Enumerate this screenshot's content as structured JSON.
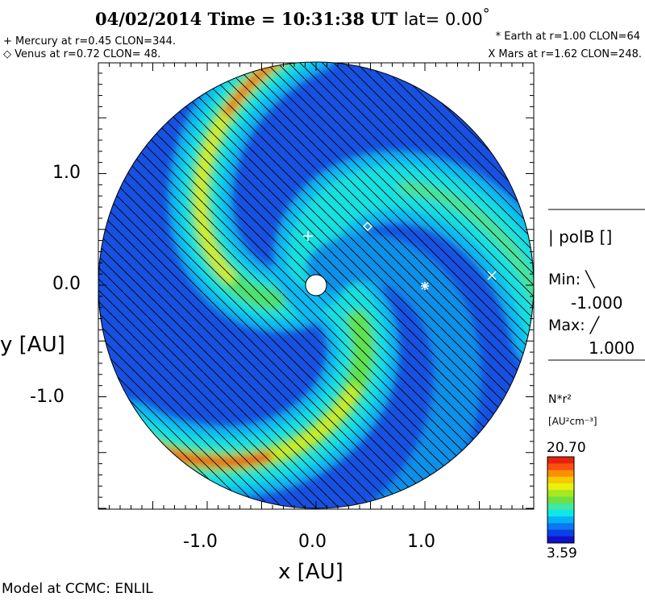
{
  "chart_data": {
    "type": "heatmap",
    "title": {
      "date": "04/02/2014",
      "time_label": "Time =",
      "time": "10:31:38 UT",
      "lat_label": "lat=",
      "lat": "0.00",
      "deg": "°"
    },
    "xlabel": "x [AU]",
    "ylabel": "y [AU]",
    "xlim": [
      -2,
      2
    ],
    "ylim": [
      -2,
      2
    ],
    "xticks": [
      "-1.0",
      "0.0",
      "1.0"
    ],
    "yticks": [
      "1.0",
      "0.0",
      "-1.0"
    ],
    "xtick_values": [
      -1,
      0,
      1
    ],
    "ytick_values": [
      1,
      0,
      -1
    ],
    "planets": [
      {
        "name": "Mercury",
        "text": "+ Mercury at r=0.45 CLON=344.",
        "r": 0.45,
        "clon": 344
      },
      {
        "name": "Venus",
        "text": "◇ Venus at r=0.72 CLON= 48.",
        "r": 0.72,
        "clon": 48
      },
      {
        "name": "Earth",
        "text": "* Earth at  r=1.00 CLON=64",
        "r": 1.0,
        "clon": 64
      },
      {
        "name": "Mars",
        "text": "X Mars at r=1.62 CLON=248.",
        "r": 1.62,
        "clon": 248
      }
    ],
    "overlay": {
      "label": "polB []",
      "min_label": "Min:",
      "min": "-1.000",
      "max_label": "Max:",
      "max": "1.000"
    },
    "colorbar": {
      "quantity": "N*r²",
      "units": "[AU²cm⁻³]",
      "max": "20.70",
      "min": "3.59",
      "colors": [
        "#1010c8",
        "#0a40e6",
        "#0a78f0",
        "#00b4f5",
        "#10e6e6",
        "#40e8a0",
        "#70e040",
        "#a8e820",
        "#e8f010",
        "#f8c800",
        "#f89000",
        "#f85010",
        "#e82010"
      ]
    },
    "footer": "Model at CCMC: ENLIL"
  }
}
